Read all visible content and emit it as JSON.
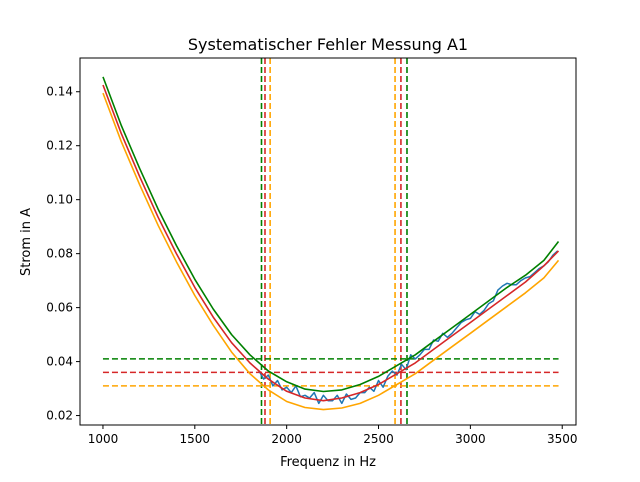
{
  "chart_data": {
    "type": "line",
    "title": "Systematischer Fehler Messung A1",
    "xlabel": "Frequenz in Hz",
    "ylabel": "Strom in A",
    "xlim": [
      875,
      3575
    ],
    "ylim": [
      0.0165,
      0.1525
    ],
    "xticks": [
      1000,
      1500,
      2000,
      2500,
      3000,
      3500
    ],
    "yticks": [
      0.02,
      0.04,
      0.06,
      0.08,
      0.1,
      0.12,
      0.14
    ],
    "grid": false,
    "colors": {
      "measured": "#1f77b4",
      "fit": "#d62728",
      "upper": "#008000",
      "lower": "#ffa500"
    },
    "series": [
      {
        "role": "measured",
        "x": [
          1850,
          1875,
          1900,
          1925,
          1950,
          1975,
          2000,
          2025,
          2050,
          2075,
          2100,
          2125,
          2150,
          2175,
          2200,
          2225,
          2250,
          2275,
          2300,
          2325,
          2350,
          2375,
          2400,
          2425,
          2450,
          2475,
          2500,
          2525,
          2550,
          2575,
          2600,
          2625,
          2650,
          2675,
          2700,
          2725,
          2750,
          2775,
          2800,
          2825,
          2850,
          2875,
          2900,
          2925,
          2950,
          2975,
          3000,
          3025,
          3050,
          3075,
          3100,
          3125,
          3150,
          3175,
          3200,
          3225,
          3250,
          3275,
          3300,
          3325,
          3350,
          3375,
          3400,
          3425,
          3450,
          3475
        ],
        "y": [
          0.0365,
          0.0335,
          0.035,
          0.031,
          0.033,
          0.0295,
          0.0305,
          0.0285,
          0.031,
          0.027,
          0.0275,
          0.0265,
          0.0285,
          0.0245,
          0.0275,
          0.0255,
          0.0255,
          0.0275,
          0.0245,
          0.028,
          0.026,
          0.0265,
          0.0285,
          0.0285,
          0.0305,
          0.029,
          0.033,
          0.0305,
          0.0345,
          0.0365,
          0.035,
          0.039,
          0.037,
          0.0425,
          0.041,
          0.0425,
          0.0445,
          0.0445,
          0.048,
          0.0475,
          0.0505,
          0.049,
          0.0505,
          0.0525,
          0.0545,
          0.0555,
          0.056,
          0.0585,
          0.0575,
          0.059,
          0.0615,
          0.0625,
          0.0665,
          0.068,
          0.069,
          0.0685,
          0.0685,
          0.07,
          0.071,
          0.0715,
          0.073,
          0.0745,
          0.0755,
          0.077,
          0.0795,
          0.081
        ]
      },
      {
        "role": "fit",
        "x": [
          1000,
          1100,
          1200,
          1300,
          1400,
          1500,
          1600,
          1700,
          1800,
          1900,
          2000,
          2100,
          2200,
          2300,
          2400,
          2500,
          2600,
          2700,
          2800,
          2900,
          3000,
          3100,
          3200,
          3300,
          3400,
          3480
        ],
        "y": [
          0.1425,
          0.1245,
          0.1085,
          0.0935,
          0.08,
          0.0675,
          0.0565,
          0.047,
          0.0395,
          0.0335,
          0.029,
          0.0265,
          0.0255,
          0.0265,
          0.0285,
          0.0315,
          0.0355,
          0.0395,
          0.0445,
          0.0495,
          0.0545,
          0.0595,
          0.0645,
          0.0695,
          0.0755,
          0.081
        ]
      },
      {
        "role": "upper",
        "x": [
          1000,
          1100,
          1200,
          1300,
          1400,
          1500,
          1600,
          1700,
          1800,
          1900,
          2000,
          2100,
          2200,
          2300,
          2400,
          2500,
          2600,
          2700,
          2800,
          2900,
          3000,
          3100,
          3200,
          3300,
          3400,
          3480
        ],
        "y": [
          0.1455,
          0.1275,
          0.1115,
          0.0965,
          0.083,
          0.0705,
          0.0595,
          0.05,
          0.0425,
          0.0365,
          0.0325,
          0.0298,
          0.0289,
          0.0295,
          0.0315,
          0.0345,
          0.0385,
          0.0425,
          0.0475,
          0.0525,
          0.0575,
          0.0625,
          0.0675,
          0.072,
          0.0775,
          0.0845
        ]
      },
      {
        "role": "lower",
        "x": [
          1000,
          1100,
          1200,
          1300,
          1400,
          1500,
          1600,
          1700,
          1800,
          1900,
          2000,
          2100,
          2200,
          2300,
          2400,
          2500,
          2600,
          2700,
          2800,
          2900,
          3000,
          3100,
          3200,
          3300,
          3400,
          3480
        ],
        "y": [
          0.1395,
          0.1215,
          0.1055,
          0.0905,
          0.077,
          0.0645,
          0.0535,
          0.0435,
          0.0355,
          0.0295,
          0.0252,
          0.023,
          0.0222,
          0.0228,
          0.0245,
          0.0275,
          0.0315,
          0.0355,
          0.0405,
          0.0455,
          0.0505,
          0.0555,
          0.0605,
          0.0655,
          0.071,
          0.0775
        ]
      }
    ],
    "hlines": [
      {
        "role": "upper",
        "y": 0.041,
        "xmin": 1000,
        "xmax": 3480
      },
      {
        "role": "fit",
        "y": 0.036,
        "xmin": 1000,
        "xmax": 3480
      },
      {
        "role": "lower",
        "y": 0.031,
        "xmin": 1000,
        "xmax": 3480
      }
    ],
    "vlines": [
      {
        "role": "upper",
        "x": 1863
      },
      {
        "role": "fit",
        "x": 1882
      },
      {
        "role": "lower",
        "x": 1910
      },
      {
        "role": "lower",
        "x": 2590
      },
      {
        "role": "fit",
        "x": 2622
      },
      {
        "role": "upper",
        "x": 2655
      }
    ]
  }
}
